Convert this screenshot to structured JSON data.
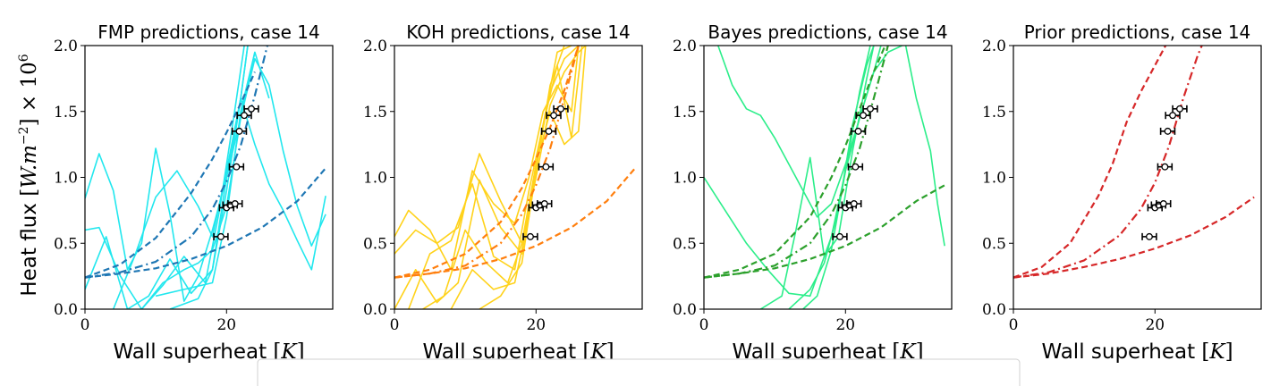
{
  "chart_data": [
    {
      "type": "line",
      "title": "FMP predictions, case 14",
      "xlabel": "Wall superheat [K]",
      "ylabel": "Heat flux [W.m^-2] × 10^6",
      "xlim": [
        0,
        35
      ],
      "ylim": [
        0,
        2.0
      ],
      "x_ticks": [
        0,
        20
      ],
      "y_ticks": [
        0.0,
        0.5,
        1.0,
        1.5,
        2.0
      ],
      "colors": {
        "samples": "#22e7ee",
        "model": "#1f77b4"
      },
      "series": [
        {
          "style": "dashed",
          "x": [
            0,
            5,
            10,
            15,
            18,
            20,
            22,
            24
          ],
          "y": [
            0.24,
            0.34,
            0.54,
            0.88,
            1.14,
            1.34,
            1.56,
            1.8
          ]
        },
        {
          "style": "dashed",
          "x": [
            0,
            5,
            10,
            15,
            20,
            25,
            30,
            34
          ],
          "y": [
            0.24,
            0.27,
            0.31,
            0.38,
            0.48,
            0.62,
            0.82,
            1.07
          ]
        },
        {
          "style": "dashdot",
          "x": [
            0,
            5,
            10,
            15,
            18,
            20,
            22,
            24,
            26
          ],
          "y": [
            0.24,
            0.28,
            0.36,
            0.55,
            0.76,
            0.97,
            1.24,
            1.62,
            2.05
          ]
        },
        {
          "style": "sample",
          "x": [
            0,
            2,
            4,
            6,
            8,
            10,
            12,
            14,
            16,
            18,
            20,
            22,
            24
          ],
          "y": [
            0.84,
            1.18,
            0.9,
            0.3,
            0.5,
            1.22,
            0.72,
            0.06,
            0.25,
            0.6,
            1.0,
            1.45,
            1.95
          ]
        },
        {
          "style": "sample",
          "x": [
            0,
            3,
            6,
            9,
            12,
            15,
            18,
            20,
            22,
            23
          ],
          "y": [
            0.15,
            0.55,
            0.0,
            0.1,
            0.38,
            0.12,
            0.3,
            1.0,
            1.6,
            2.0
          ]
        },
        {
          "style": "sample",
          "x": [
            0,
            2,
            5,
            8,
            11,
            14,
            17,
            19,
            21,
            22.5
          ],
          "y": [
            0.6,
            0.62,
            0.25,
            0.0,
            0.18,
            0.4,
            0.2,
            0.75,
            1.45,
            2.0
          ]
        },
        {
          "style": "sample",
          "x": [
            4,
            7,
            10,
            13,
            16,
            18,
            20,
            22,
            24,
            26,
            28,
            30,
            32,
            34
          ],
          "y": [
            0.0,
            0.4,
            0.85,
            1.05,
            0.78,
            0.55,
            1.05,
            1.6,
            1.25,
            0.95,
            0.75,
            0.52,
            0.3,
            0.86
          ]
        },
        {
          "style": "sample",
          "x": [
            8,
            11,
            14,
            16,
            18,
            20,
            22,
            24,
            26,
            28,
            30,
            32,
            34
          ],
          "y": [
            0.0,
            0.2,
            0.3,
            0.35,
            0.45,
            0.78,
            1.45,
            1.9,
            1.7,
            1.2,
            0.78,
            0.48,
            0.72
          ]
        },
        {
          "style": "sample",
          "x": [
            10,
            14,
            18,
            20,
            22,
            24,
            26
          ],
          "y": [
            0.1,
            0.15,
            0.2,
            0.7,
            1.5,
            1.95,
            1.6
          ]
        },
        {
          "style": "sample",
          "x": [
            12,
            16,
            18,
            20,
            22,
            23
          ],
          "y": [
            0.0,
            0.08,
            0.3,
            0.9,
            1.6,
            2.0
          ]
        }
      ],
      "data_points": {
        "x": [
          19.2,
          20.0,
          20.5,
          21.2,
          21.4,
          21.8,
          22.5,
          23.5
        ],
        "y": [
          0.55,
          0.77,
          0.79,
          0.8,
          1.08,
          1.35,
          1.47,
          1.52
        ],
        "x_err": 1.0
      }
    },
    {
      "type": "line",
      "title": "KOH predictions, case 14",
      "xlabel": "Wall superheat [K]",
      "xlim": [
        0,
        35
      ],
      "ylim": [
        0,
        2.0
      ],
      "x_ticks": [
        0,
        20
      ],
      "y_ticks": [
        0.0,
        0.5,
        1.0,
        1.5,
        2.0
      ],
      "colors": {
        "samples": "#ffd21a",
        "model": "#ff7f0e"
      },
      "series": [
        {
          "style": "dashed",
          "x": [
            0,
            5,
            10,
            15,
            18,
            20,
            22,
            24,
            26
          ],
          "y": [
            0.24,
            0.3,
            0.42,
            0.66,
            0.92,
            1.14,
            1.38,
            1.66,
            2.0
          ]
        },
        {
          "style": "dashed",
          "x": [
            0,
            5,
            10,
            15,
            20,
            25,
            30,
            34
          ],
          "y": [
            0.24,
            0.27,
            0.31,
            0.38,
            0.48,
            0.62,
            0.82,
            1.07
          ]
        },
        {
          "style": "dashdot",
          "x": [
            0,
            5,
            10,
            15,
            18,
            20,
            22,
            24,
            26
          ],
          "y": [
            0.24,
            0.27,
            0.33,
            0.5,
            0.72,
            0.94,
            1.22,
            1.6,
            2.0
          ]
        },
        {
          "style": "sample",
          "x": [
            0,
            3,
            6,
            9,
            12,
            15,
            18,
            20,
            22,
            24,
            26,
            27
          ],
          "y": [
            0.42,
            0.6,
            0.5,
            0.62,
            1.18,
            0.82,
            0.5,
            1.0,
            1.55,
            1.8,
            1.95,
            2.0
          ]
        },
        {
          "style": "sample",
          "x": [
            0,
            2,
            5,
            8,
            11,
            14,
            17,
            19,
            21,
            23,
            25,
            26
          ],
          "y": [
            0.55,
            0.75,
            0.6,
            0.3,
            1.05,
            0.8,
            0.65,
            1.0,
            1.5,
            1.7,
            1.5,
            2.0
          ]
        },
        {
          "style": "sample",
          "x": [
            0,
            3,
            6,
            9,
            12,
            15,
            18,
            20,
            22,
            24,
            26,
            27
          ],
          "y": [
            0.0,
            0.3,
            0.05,
            0.2,
            0.98,
            0.62,
            0.42,
            1.1,
            1.5,
            1.25,
            1.35,
            2.0
          ]
        },
        {
          "style": "sample",
          "x": [
            2,
            5,
            8,
            11,
            14,
            17,
            19,
            21,
            23,
            25,
            26.5
          ],
          "y": [
            0.0,
            0.42,
            0.52,
            0.95,
            0.4,
            0.3,
            0.9,
            1.4,
            1.85,
            1.3,
            2.0
          ]
        },
        {
          "style": "sample",
          "x": [
            4,
            7,
            10,
            13,
            16,
            18,
            20,
            22,
            24,
            26
          ],
          "y": [
            0.0,
            0.1,
            0.6,
            0.35,
            0.2,
            0.5,
            1.1,
            1.65,
            1.9,
            2.0
          ]
        },
        {
          "style": "sample",
          "x": [
            8,
            11,
            14,
            17,
            19,
            21,
            23,
            25
          ],
          "y": [
            0.0,
            0.3,
            0.15,
            0.2,
            0.7,
            1.4,
            1.95,
            2.0
          ]
        },
        {
          "style": "sample",
          "x": [
            12,
            15,
            18,
            20,
            22,
            24
          ],
          "y": [
            0.0,
            0.1,
            0.35,
            1.05,
            1.7,
            2.0
          ]
        }
      ],
      "data_points": {
        "x": [
          19.2,
          20.0,
          20.5,
          21.2,
          21.4,
          21.8,
          22.5,
          23.5
        ],
        "y": [
          0.55,
          0.77,
          0.79,
          0.8,
          1.08,
          1.35,
          1.47,
          1.52
        ],
        "x_err": 1.0
      }
    },
    {
      "type": "line",
      "title": "Bayes predictions, case 14",
      "xlabel": "Wall superheat [K]",
      "xlim": [
        0,
        35
      ],
      "ylim": [
        0,
        2.0
      ],
      "x_ticks": [
        0,
        20
      ],
      "y_ticks": [
        0.0,
        0.5,
        1.0,
        1.5,
        2.0
      ],
      "colors": {
        "samples": "#2cee8a",
        "model": "#2ca02c"
      },
      "series": [
        {
          "style": "dashed",
          "x": [
            0,
            5,
            10,
            15,
            18,
            20,
            22,
            24,
            26
          ],
          "y": [
            0.24,
            0.3,
            0.42,
            0.7,
            1.0,
            1.24,
            1.52,
            1.8,
            2.05
          ]
        },
        {
          "style": "dashed",
          "x": [
            0,
            5,
            10,
            15,
            20,
            25,
            30,
            34
          ],
          "y": [
            0.24,
            0.27,
            0.31,
            0.38,
            0.48,
            0.62,
            0.82,
            0.94
          ]
        },
        {
          "style": "dashdot",
          "x": [
            0,
            5,
            10,
            15,
            18,
            20,
            22,
            24,
            26
          ],
          "y": [
            0.24,
            0.27,
            0.33,
            0.5,
            0.72,
            0.94,
            1.22,
            1.6,
            2.0
          ]
        },
        {
          "style": "sample",
          "x": [
            0,
            3,
            6,
            9,
            12,
            15,
            18,
            20,
            22,
            24,
            26,
            28
          ],
          "y": [
            1.0,
            0.75,
            0.5,
            0.3,
            0.12,
            0.1,
            0.55,
            1.05,
            1.45,
            1.8,
            1.95,
            2.0
          ]
        },
        {
          "style": "sample",
          "x": [
            2,
            4,
            6,
            8,
            10,
            13,
            16,
            18,
            20,
            22,
            24,
            25
          ],
          "y": [
            2.0,
            1.7,
            1.52,
            1.47,
            1.3,
            1.0,
            0.7,
            0.8,
            1.1,
            1.45,
            1.8,
            2.0
          ]
        },
        {
          "style": "sample",
          "x": [
            8,
            11,
            13,
            15,
            17,
            19,
            21,
            23,
            24
          ],
          "y": [
            0.0,
            0.1,
            0.6,
            1.15,
            0.4,
            0.55,
            1.2,
            1.75,
            2.0
          ]
        },
        {
          "style": "sample",
          "x": [
            12,
            15,
            17,
            19,
            21,
            23,
            24
          ],
          "y": [
            0.0,
            0.15,
            0.35,
            0.75,
            1.4,
            1.85,
            2.0
          ]
        },
        {
          "style": "sample",
          "x": [
            28.5,
            30,
            32,
            33,
            34
          ],
          "y": [
            2.0,
            1.6,
            1.2,
            0.8,
            0.48
          ]
        },
        {
          "style": "sample",
          "x": [
            14,
            16,
            18,
            20,
            22,
            23.5
          ],
          "y": [
            0.0,
            0.1,
            0.45,
            1.05,
            1.65,
            2.0
          ]
        }
      ],
      "data_points": {
        "x": [
          19.2,
          20.0,
          20.5,
          21.2,
          21.4,
          21.8,
          22.5,
          23.5
        ],
        "y": [
          0.55,
          0.77,
          0.79,
          0.8,
          1.08,
          1.35,
          1.47,
          1.52
        ],
        "x_err": 1.0
      }
    },
    {
      "type": "line",
      "title": "Prior predictions, case 14",
      "xlabel": "Wall superheat [K]",
      "xlim": [
        0,
        35
      ],
      "ylim": [
        0,
        2.0
      ],
      "x_ticks": [
        0,
        20
      ],
      "y_ticks": [
        0.0,
        0.5,
        1.0,
        1.5,
        2.0
      ],
      "colors": {
        "model": "#d62728"
      },
      "series": [
        {
          "style": "dashed",
          "x": [
            0,
            4,
            8,
            12,
            14,
            16,
            18,
            20,
            22
          ],
          "y": [
            0.24,
            0.32,
            0.5,
            0.86,
            1.1,
            1.42,
            1.65,
            1.85,
            2.05
          ]
        },
        {
          "style": "dashed",
          "x": [
            0,
            5,
            10,
            15,
            20,
            25,
            30,
            34
          ],
          "y": [
            0.24,
            0.27,
            0.32,
            0.38,
            0.46,
            0.56,
            0.7,
            0.85
          ]
        },
        {
          "style": "dashdot",
          "x": [
            0,
            5,
            10,
            15,
            18,
            20,
            22,
            24,
            26,
            27
          ],
          "y": [
            0.24,
            0.28,
            0.37,
            0.56,
            0.76,
            0.96,
            1.24,
            1.6,
            1.92,
            2.05
          ]
        }
      ],
      "data_points": {
        "x": [
          19.2,
          20.0,
          20.5,
          21.2,
          21.4,
          21.8,
          22.5,
          23.5
        ],
        "y": [
          0.55,
          0.77,
          0.79,
          0.8,
          1.08,
          1.35,
          1.47,
          1.52
        ],
        "x_err": 1.0
      }
    }
  ]
}
